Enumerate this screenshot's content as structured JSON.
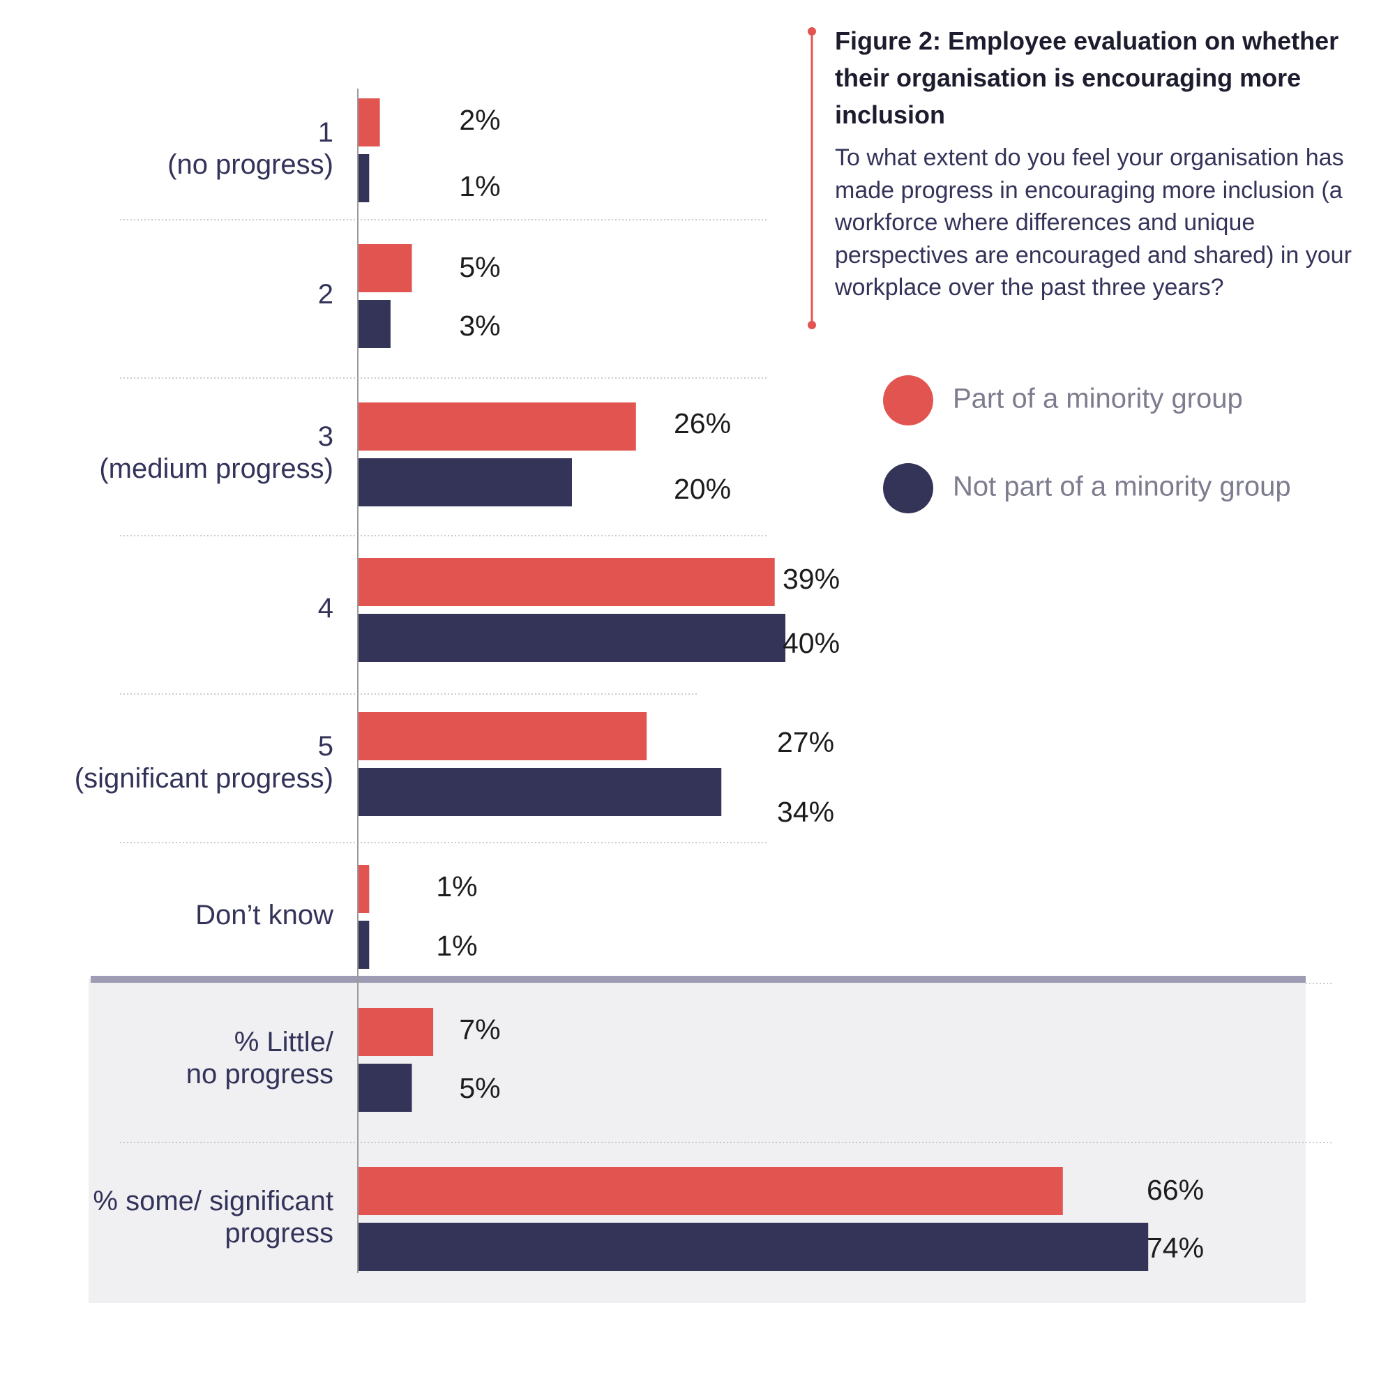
{
  "header": {
    "title": "Figure 2: Employee evaluation on whether their organisation is encouraging more inclusion",
    "subtitle": "To what extent do you feel your organisation has made progress in encouraging more inclusion (a workforce where differences and unique perspectives are encouraged and shared) in your workplace over the past three years?"
  },
  "colors": {
    "minority": "#e2544f",
    "non_minority": "#343458",
    "summary_background": "#f0f0f3",
    "separator": "#9e9cb4",
    "gridline": "#b8b8c4",
    "axis": "#9a9a9a"
  },
  "chart_data": {
    "type": "bar",
    "orientation": "horizontal",
    "title": "Figure 2: Employee evaluation on whether their organisation is encouraging more inclusion",
    "xlabel": "",
    "ylabel": "",
    "xlim": [
      0,
      80
    ],
    "grid": false,
    "legend_position": "top-right",
    "categories": [
      [
        "1",
        "(no progress)"
      ],
      [
        "2"
      ],
      [
        "3",
        "(medium progress)"
      ],
      [
        "4"
      ],
      [
        "5",
        "(significant progress)"
      ],
      [
        "Don’t know"
      ],
      [
        "% Little/",
        "no progress"
      ],
      [
        "% some/ significant",
        "progress"
      ]
    ],
    "summary_categories_start": 6,
    "series": [
      {
        "name": "Part of a minority group",
        "color": "#e2544f",
        "values": [
          2,
          5,
          26,
          39,
          27,
          1,
          7,
          66
        ],
        "labels": [
          "2%",
          "5%",
          "26%",
          "39%",
          "27%",
          "1%",
          "7%",
          "66%"
        ]
      },
      {
        "name": "Not part of a minority group",
        "color": "#343458",
        "values": [
          1,
          3,
          20,
          40,
          34,
          1,
          5,
          74
        ],
        "labels": [
          "1%",
          "3%",
          "20%",
          "40%",
          "34%",
          "1%",
          "5%",
          "74%"
        ]
      }
    ]
  }
}
